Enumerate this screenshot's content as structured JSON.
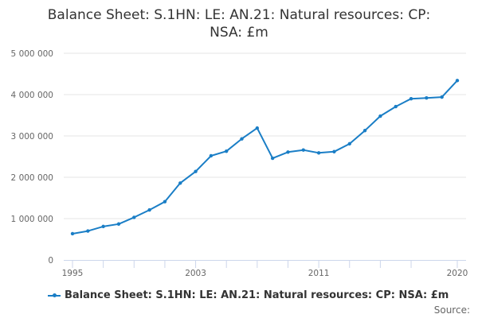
{
  "chart_data": {
    "type": "line",
    "title": "Balance Sheet: S.1HN: LE: AN.21: Natural resources: CP: NSA: £m",
    "xlabel": "",
    "ylabel": "",
    "x": [
      1995,
      1996,
      1997,
      1998,
      1999,
      2000,
      2001,
      2002,
      2003,
      2004,
      2005,
      2006,
      2007,
      2008,
      2009,
      2010,
      2011,
      2012,
      2013,
      2014,
      2015,
      2016,
      2017,
      2018,
      2019,
      2020
    ],
    "series": [
      {
        "name": "Balance Sheet: S.1HN: LE: AN.21: Natural resources: CP: NSA: £m",
        "values": [
          635000,
          700000,
          810000,
          870000,
          1030000,
          1210000,
          1410000,
          1860000,
          2140000,
          2520000,
          2630000,
          2930000,
          3190000,
          2460000,
          2610000,
          2660000,
          2590000,
          2620000,
          2810000,
          3130000,
          3480000,
          3710000,
          3900000,
          3920000,
          3940000,
          4340000
        ]
      }
    ],
    "ylim": [
      0,
      5000000
    ],
    "xlim": [
      1995,
      2020
    ],
    "y_ticks": [
      "0",
      "1 000 000",
      "2 000 000",
      "3 000 000",
      "4 000 000",
      "5 000 000"
    ],
    "x_tick_labels": [
      "1995",
      "2003",
      "2011",
      "2020"
    ],
    "grid": "horizontal",
    "legend": "bottom",
    "color": "#1a7ec6",
    "source_label": "Source:"
  }
}
